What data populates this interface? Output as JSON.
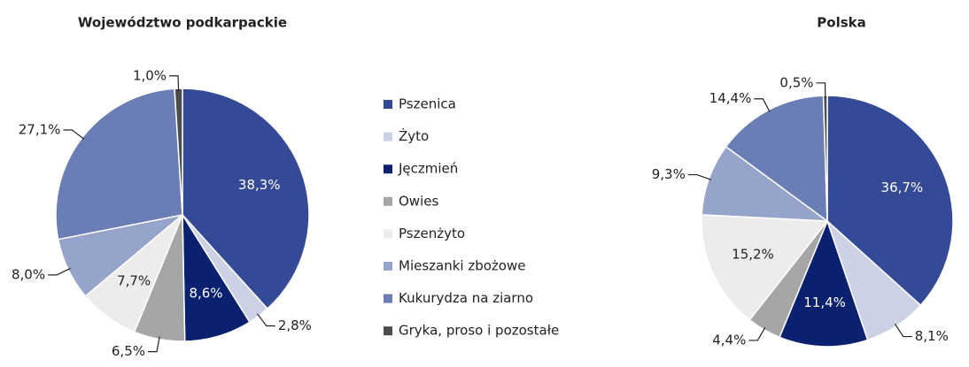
{
  "categories": [
    "Pszenica",
    "Żyto",
    "Jęczmień",
    "Owies",
    "Pszenżyto",
    "Mieszanki zbożowe",
    "Kukurydza na ziarno",
    "Gryka, proso i pozostałe"
  ],
  "colors": [
    "#354a96",
    "#ccd1e6",
    "#0a2170",
    "#a6a6a6",
    "#ececec",
    "#96a4cc",
    "#6a7db4",
    "#4d4d4d"
  ],
  "chart_data": [
    {
      "type": "pie",
      "title": "Województwo podkarpackie",
      "values": [
        38.3,
        2.8,
        8.6,
        6.5,
        7.7,
        8.0,
        27.1,
        1.0
      ],
      "value_labels": [
        "38,3%",
        "2,8%",
        "8,6%",
        "6,5%",
        "7,7%",
        "8,0%",
        "27,1%",
        "1,0%"
      ]
    },
    {
      "type": "pie",
      "title": "Polska",
      "values": [
        36.7,
        8.1,
        11.4,
        4.4,
        15.2,
        9.3,
        14.4,
        0.5
      ],
      "value_labels": [
        "36,7%",
        "8,1%",
        "11,4%",
        "4,4%",
        "15,2%",
        "9,3%",
        "14,4%",
        "0,5%"
      ]
    }
  ]
}
